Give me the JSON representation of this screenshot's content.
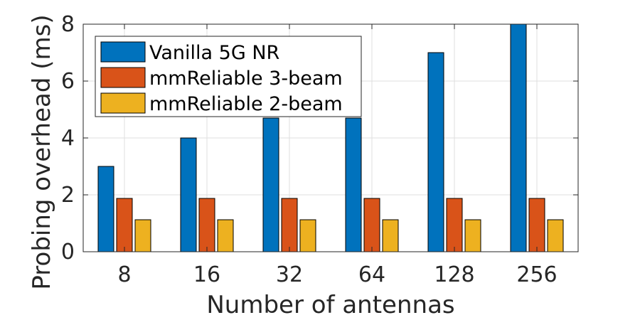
{
  "chart_data": {
    "type": "bar",
    "title": "",
    "xlabel": "Number of antennas",
    "ylabel": "Probing overhead (ms)",
    "categories": [
      "8",
      "16",
      "32",
      "64",
      "128",
      "256"
    ],
    "ylim": [
      0,
      8
    ],
    "yticks": [
      "0",
      "2",
      "4",
      "6",
      "8"
    ],
    "grid": true,
    "legend_position": "top-left",
    "series": [
      {
        "name": "Vanilla 5G NR",
        "color": "#0072BD",
        "values": [
          3,
          4,
          4.7,
          4.7,
          7,
          8
        ]
      },
      {
        "name": "mmReliable 3-beam",
        "color": "#D95319",
        "values": [
          1.875,
          1.875,
          1.875,
          1.875,
          1.875,
          1.875
        ]
      },
      {
        "name": "mmReliable 2-beam",
        "color": "#EDB120",
        "values": [
          1.125,
          1.125,
          1.125,
          1.125,
          1.125,
          1.125
        ]
      }
    ]
  }
}
